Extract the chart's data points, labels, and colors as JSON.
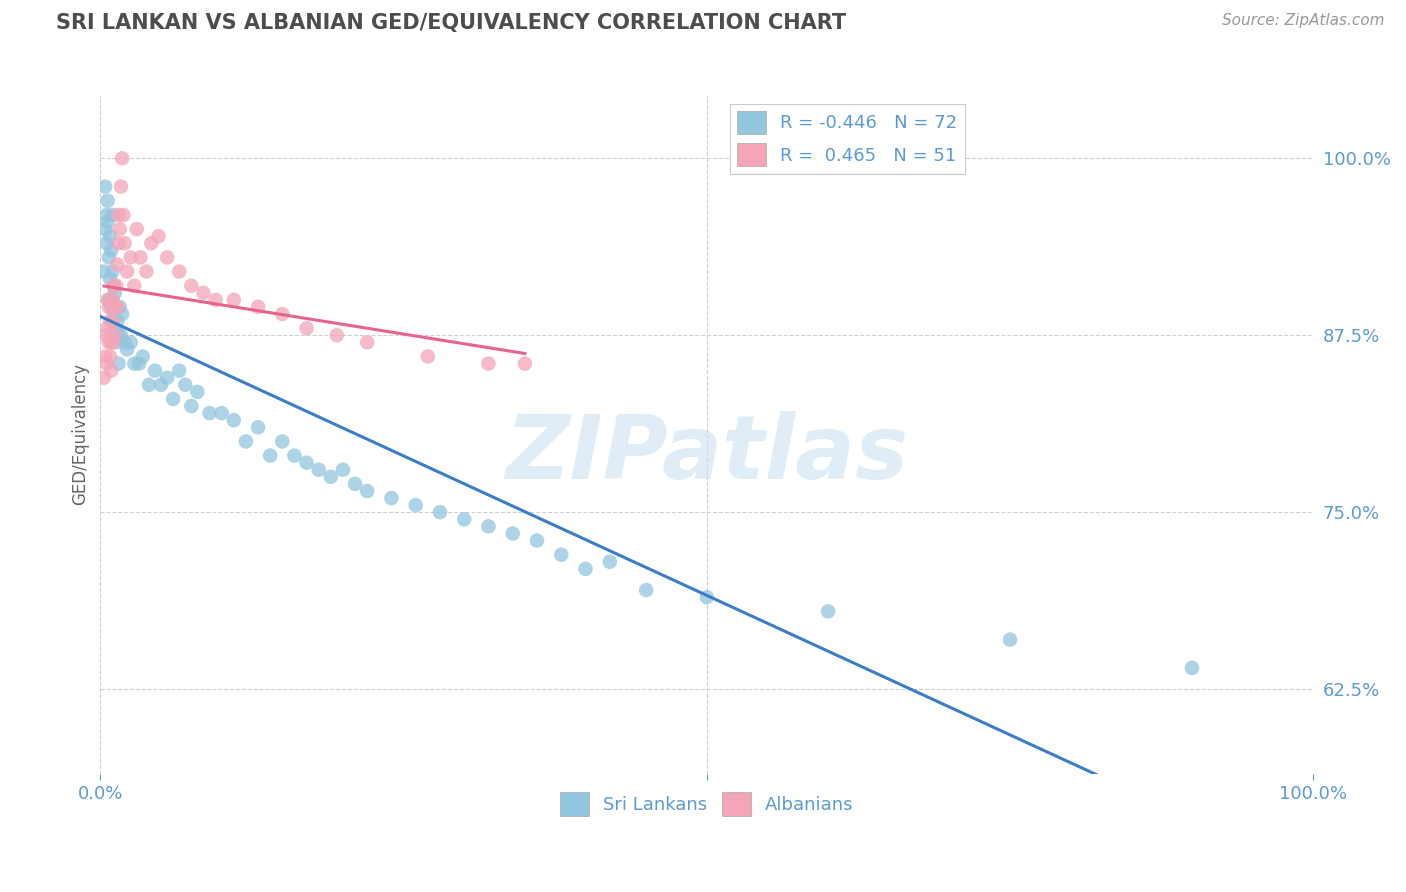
{
  "title": "SRI LANKAN VS ALBANIAN GED/EQUIVALENCY CORRELATION CHART",
  "source": "Source: ZipAtlas.com",
  "ylabel": "GED/Equivalency",
  "xlim": [
    0.0,
    1.0
  ],
  "ylim": [
    0.565,
    1.045
  ],
  "ytick_labels": [
    "62.5%",
    "75.0%",
    "87.5%",
    "100.0%"
  ],
  "ytick_positions": [
    0.625,
    0.75,
    0.875,
    1.0
  ],
  "legend_labels": [
    "Sri Lankans",
    "Albanians"
  ],
  "sri_lankan_color": "#92c5de",
  "albanian_color": "#f4a5b8",
  "sri_lankan_line_color": "#3a7dc9",
  "albanian_line_color": "#e8648a",
  "sri_lankan_R": -0.446,
  "sri_lankan_N": 72,
  "albanian_R": 0.465,
  "albanian_N": 51,
  "watermark": "ZIPatlas",
  "background_color": "#ffffff",
  "grid_color": "#d0d0d0",
  "title_color": "#4d4d4d",
  "axis_label_color": "#5b9bd5",
  "sri_lankans_x": [
    0.003,
    0.004,
    0.004,
    0.005,
    0.005,
    0.006,
    0.006,
    0.007,
    0.007,
    0.008,
    0.008,
    0.009,
    0.009,
    0.01,
    0.01,
    0.01,
    0.011,
    0.011,
    0.012,
    0.012,
    0.013,
    0.013,
    0.014,
    0.015,
    0.015,
    0.016,
    0.017,
    0.018,
    0.02,
    0.022,
    0.025,
    0.028,
    0.032,
    0.035,
    0.04,
    0.045,
    0.05,
    0.055,
    0.06,
    0.065,
    0.07,
    0.075,
    0.08,
    0.09,
    0.1,
    0.11,
    0.12,
    0.13,
    0.14,
    0.15,
    0.16,
    0.17,
    0.18,
    0.19,
    0.2,
    0.21,
    0.22,
    0.24,
    0.26,
    0.28,
    0.3,
    0.32,
    0.34,
    0.36,
    0.38,
    0.4,
    0.42,
    0.45,
    0.5,
    0.6,
    0.75,
    0.9
  ],
  "sri_lankans_y": [
    0.92,
    0.95,
    0.98,
    0.96,
    0.94,
    0.97,
    0.955,
    0.93,
    0.9,
    0.945,
    0.915,
    0.935,
    0.895,
    0.9,
    0.92,
    0.96,
    0.89,
    0.91,
    0.88,
    0.905,
    0.895,
    0.87,
    0.885,
    0.875,
    0.855,
    0.895,
    0.875,
    0.89,
    0.87,
    0.865,
    0.87,
    0.855,
    0.855,
    0.86,
    0.84,
    0.85,
    0.84,
    0.845,
    0.83,
    0.85,
    0.84,
    0.825,
    0.835,
    0.82,
    0.82,
    0.815,
    0.8,
    0.81,
    0.79,
    0.8,
    0.79,
    0.785,
    0.78,
    0.775,
    0.78,
    0.77,
    0.765,
    0.76,
    0.755,
    0.75,
    0.745,
    0.74,
    0.735,
    0.73,
    0.72,
    0.71,
    0.715,
    0.695,
    0.69,
    0.68,
    0.66,
    0.64
  ],
  "albanians_x": [
    0.003,
    0.004,
    0.005,
    0.005,
    0.006,
    0.006,
    0.007,
    0.007,
    0.008,
    0.008,
    0.009,
    0.009,
    0.01,
    0.01,
    0.01,
    0.011,
    0.011,
    0.012,
    0.012,
    0.013,
    0.014,
    0.014,
    0.015,
    0.015,
    0.016,
    0.017,
    0.018,
    0.019,
    0.02,
    0.022,
    0.025,
    0.028,
    0.03,
    0.033,
    0.038,
    0.042,
    0.048,
    0.055,
    0.065,
    0.075,
    0.085,
    0.095,
    0.11,
    0.13,
    0.15,
    0.17,
    0.195,
    0.22,
    0.27,
    0.32,
    0.35
  ],
  "albanians_y": [
    0.845,
    0.86,
    0.875,
    0.855,
    0.9,
    0.88,
    0.895,
    0.87,
    0.885,
    0.86,
    0.87,
    0.85,
    0.87,
    0.885,
    0.9,
    0.91,
    0.895,
    0.875,
    0.895,
    0.91,
    0.925,
    0.895,
    0.94,
    0.96,
    0.95,
    0.98,
    1.0,
    0.96,
    0.94,
    0.92,
    0.93,
    0.91,
    0.95,
    0.93,
    0.92,
    0.94,
    0.945,
    0.93,
    0.92,
    0.91,
    0.905,
    0.9,
    0.9,
    0.895,
    0.89,
    0.88,
    0.875,
    0.87,
    0.86,
    0.855,
    0.855
  ]
}
